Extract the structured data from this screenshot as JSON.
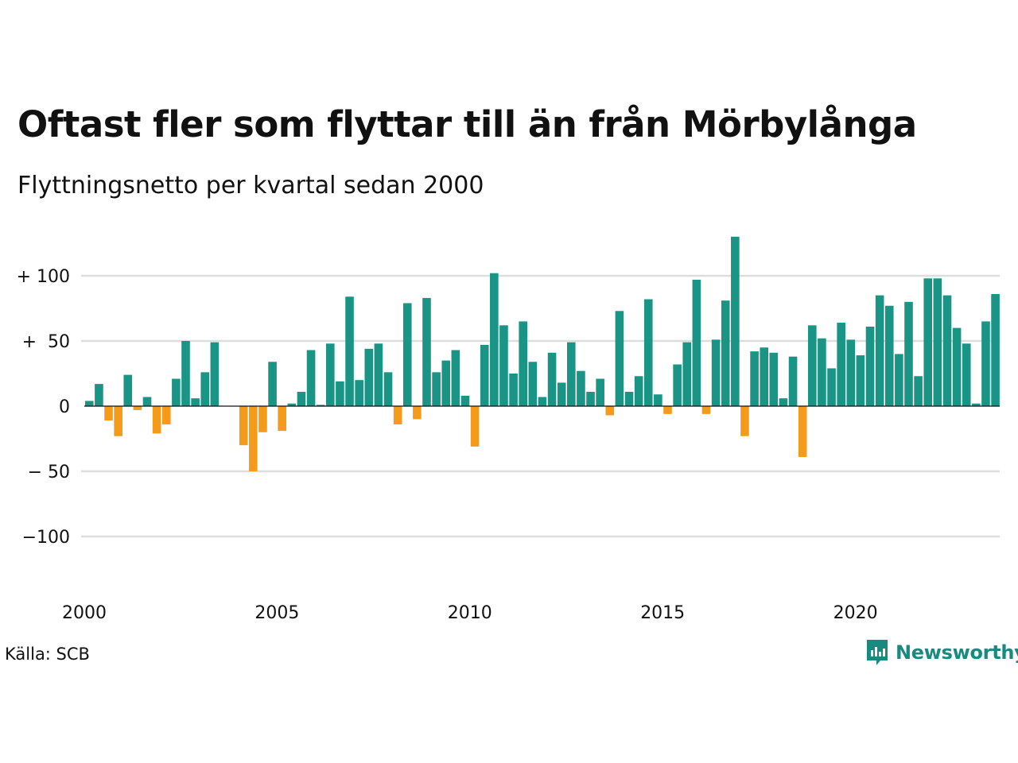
{
  "title": "Oftast fler som flyttar till än från Mörbylånga",
  "subtitle": "Flyttningsnetto per kvartal sedan 2000",
  "source": "Källa: SCB",
  "brand": {
    "name": "Newsworthy",
    "icon": "newsworthy-logo-icon",
    "color": "#1a8a80"
  },
  "colors": {
    "positive": "#1a9585",
    "negative": "#f49b1c",
    "grid": "#dddddd",
    "zero_line": "#111111"
  },
  "chart_data": {
    "type": "bar",
    "xlabel": "",
    "ylabel": "",
    "ylim": [
      -140,
      135
    ],
    "grid": true,
    "y_ticks": [
      {
        "value": 100,
        "label": "+ 100"
      },
      {
        "value": 50,
        "label": "+  50"
      },
      {
        "value": 0,
        "label": "0"
      },
      {
        "value": -50,
        "label": "− 50"
      },
      {
        "value": -100,
        "label": "−100"
      }
    ],
    "x_ticks": [
      {
        "index": 0,
        "label": "2000"
      },
      {
        "index": 20,
        "label": "2005"
      },
      {
        "index": 40,
        "label": "2010"
      },
      {
        "index": 60,
        "label": "2015"
      },
      {
        "index": 80,
        "label": "2020"
      }
    ],
    "start_year": 2000,
    "values": [
      4,
      17,
      -11,
      -23,
      24,
      -3,
      7,
      -21,
      -14,
      21,
      50,
      6,
      26,
      49,
      0,
      0,
      -30,
      -50,
      -20,
      34,
      -19,
      2,
      11,
      43,
      1,
      48,
      19,
      84,
      20,
      44,
      48,
      26,
      -14,
      79,
      -10,
      83,
      26,
      35,
      43,
      8,
      -31,
      47,
      102,
      62,
      25,
      65,
      34,
      7,
      41,
      18,
      49,
      27,
      11,
      21,
      -7,
      73,
      11,
      23,
      82,
      9,
      -6,
      32,
      49,
      97,
      -6,
      51,
      81,
      130,
      -23,
      42,
      45,
      41,
      6,
      38,
      -39,
      62,
      52,
      29,
      64,
      51,
      39,
      61,
      85,
      77,
      40,
      80,
      23,
      98,
      98,
      85,
      60,
      48,
      2,
      65,
      86
    ]
  }
}
